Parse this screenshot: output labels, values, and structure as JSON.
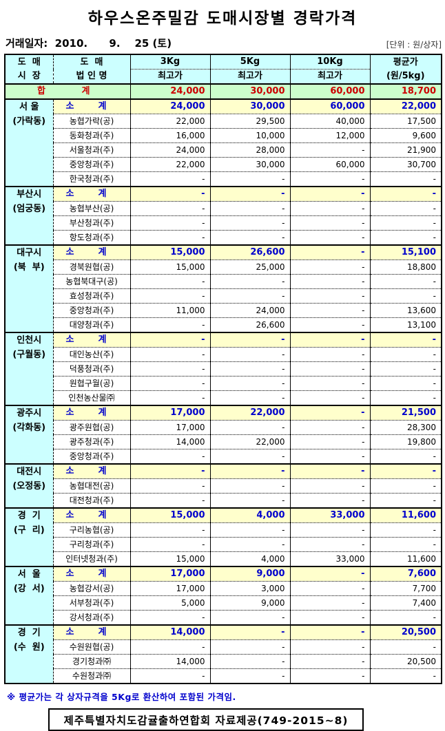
{
  "title": "하우스온주밀감 도매시장별 경락가격",
  "trade_date": "거래일자:  2010.      9.    25 (토)",
  "unit_label": "[단위 : 원/상자]",
  "colors": {
    "header_bg": "#ccffff",
    "total_bg": "#ccffcc",
    "total_text": "#cc0000",
    "subtotal_bg": "#ffffcc",
    "subtotal_text": "#0000cc",
    "footnote_text": "#0000cc"
  },
  "table": {
    "headers": {
      "market_lines": [
        "도  매",
        "시  장"
      ],
      "corp_lines": [
        "도  매",
        "법 인 명"
      ],
      "size_cols": [
        "3Kg",
        "5Kg",
        "10Kg"
      ],
      "size_sub": "최고가",
      "avg_lines": [
        "평균가",
        "(원/5kg)"
      ]
    },
    "total_row": {
      "label": [
        "합",
        "계"
      ],
      "values": [
        "24,000",
        "30,000",
        "60,000",
        "18,700"
      ]
    },
    "subtotal_label": [
      "소",
      "계"
    ],
    "groups": [
      {
        "region_lines": [
          "서 울",
          "(가락동)"
        ],
        "subtotal": [
          "24,000",
          "30,000",
          "60,000",
          "22,000"
        ],
        "rows": [
          {
            "name": "농협가락(공)",
            "values": [
              "22,000",
              "29,500",
              "40,000",
              "17,500"
            ]
          },
          {
            "name": "동화청과(주)",
            "values": [
              "16,000",
              "10,000",
              "12,000",
              "9,600"
            ]
          },
          {
            "name": "서울청과(주)",
            "values": [
              "24,000",
              "28,000",
              "-",
              "21,900"
            ]
          },
          {
            "name": "중앙청과(주)",
            "values": [
              "22,000",
              "30,000",
              "60,000",
              "30,700"
            ]
          },
          {
            "name": "한국청과(주)",
            "values": [
              "-",
              "-",
              "-",
              "-"
            ]
          }
        ]
      },
      {
        "region_lines": [
          "부산시",
          "(엄궁동)"
        ],
        "subtotal": [
          "-",
          "-",
          "-",
          "-"
        ],
        "rows": [
          {
            "name": "농협부산(공)",
            "values": [
              "-",
              "-",
              "-",
              "-"
            ]
          },
          {
            "name": "부산청과(주)",
            "values": [
              "-",
              "-",
              "-",
              "-"
            ]
          },
          {
            "name": "항도청과(주)",
            "values": [
              "-",
              "-",
              "-",
              "-"
            ]
          }
        ]
      },
      {
        "region_lines": [
          "대구시",
          "(북  부)"
        ],
        "subtotal": [
          "15,000",
          "26,600",
          "-",
          "15,100"
        ],
        "rows": [
          {
            "name": "경북원협(공)",
            "values": [
              "15,000",
              "25,000",
              "-",
              "18,800"
            ]
          },
          {
            "name": "농협북대구(공)",
            "values": [
              "-",
              "-",
              "-",
              "-"
            ]
          },
          {
            "name": "효성청과(주)",
            "values": [
              "-",
              "-",
              "-",
              "-"
            ]
          },
          {
            "name": "중앙청과(주)",
            "values": [
              "11,000",
              "24,000",
              "-",
              "13,600"
            ]
          },
          {
            "name": "대양청과(주)",
            "values": [
              "-",
              "26,600",
              "-",
              "13,100"
            ]
          }
        ]
      },
      {
        "region_lines": [
          "인천시",
          "(구월동)"
        ],
        "subtotal": [
          "-",
          "-",
          "-",
          "-"
        ],
        "rows": [
          {
            "name": "대인농산(주)",
            "values": [
              "-",
              "-",
              "-",
              "-"
            ]
          },
          {
            "name": "덕풍청과(주)",
            "values": [
              "-",
              "-",
              "-",
              "-"
            ]
          },
          {
            "name": "원협구월(공)",
            "values": [
              "-",
              "-",
              "-",
              "-"
            ]
          },
          {
            "name": "인천농산물㈜",
            "values": [
              "-",
              "-",
              "-",
              "-"
            ]
          }
        ]
      },
      {
        "region_lines": [
          "광주시",
          "(각화동)"
        ],
        "subtotal": [
          "17,000",
          "22,000",
          "-",
          "21,500"
        ],
        "rows": [
          {
            "name": "광주원협(공)",
            "values": [
              "17,000",
              "-",
              "-",
              "28,300"
            ]
          },
          {
            "name": "광주청과(주)",
            "values": [
              "14,000",
              "22,000",
              "-",
              "19,800"
            ]
          },
          {
            "name": "중앙청과(주)",
            "values": [
              "-",
              "-",
              "-",
              "-"
            ]
          }
        ]
      },
      {
        "region_lines": [
          "대전시",
          "(오정동)"
        ],
        "subtotal": [
          "-",
          "-",
          "-",
          "-"
        ],
        "rows": [
          {
            "name": "농협대전(공)",
            "values": [
              "-",
              "-",
              "-",
              "-"
            ]
          },
          {
            "name": "대전청과(주)",
            "values": [
              "-",
              "-",
              "-",
              "-"
            ]
          }
        ]
      },
      {
        "region_lines": [
          "경  기",
          "(구  리)"
        ],
        "subtotal": [
          "15,000",
          "4,000",
          "33,000",
          "11,600"
        ],
        "rows": [
          {
            "name": "구리농협(공)",
            "values": [
              "-",
              "-",
              "-",
              "-"
            ]
          },
          {
            "name": "구리청과(주)",
            "values": [
              "-",
              "-",
              "-",
              "-"
            ]
          },
          {
            "name": "인터넷청과(주)",
            "values": [
              "15,000",
              "4,000",
              "33,000",
              "11,600"
            ]
          }
        ]
      },
      {
        "region_lines": [
          "서  울",
          "(강  서)"
        ],
        "subtotal": [
          "17,000",
          "9,000",
          "-",
          "7,600"
        ],
        "rows": [
          {
            "name": "농협강서(공)",
            "values": [
              "17,000",
              "3,000",
              "-",
              "7,700"
            ]
          },
          {
            "name": "서부청과(주)",
            "values": [
              "5,000",
              "9,000",
              "-",
              "7,400"
            ]
          },
          {
            "name": "강서청과(주)",
            "values": [
              "-",
              "-",
              "-",
              "-"
            ]
          }
        ]
      },
      {
        "region_lines": [
          "경  기",
          "(수  원)"
        ],
        "subtotal": [
          "14,000",
          "-",
          "-",
          "20,500"
        ],
        "rows": [
          {
            "name": "수원원협(공)",
            "values": [
              "-",
              "-",
              "-",
              "-"
            ]
          },
          {
            "name": "경기청과㈜",
            "values": [
              "14,000",
              "-",
              "-",
              "20,500"
            ]
          },
          {
            "name": "수원청과㈜",
            "values": [
              "-",
              "-",
              "-",
              "-"
            ]
          }
        ]
      }
    ]
  },
  "footnote": "※ 평균가는 각 상자규격을 5Kg로 환산하여 포함된 가격임.",
  "source_box": "제주특별자치도감귤출하연합회 자료제공(749-2015~8)"
}
